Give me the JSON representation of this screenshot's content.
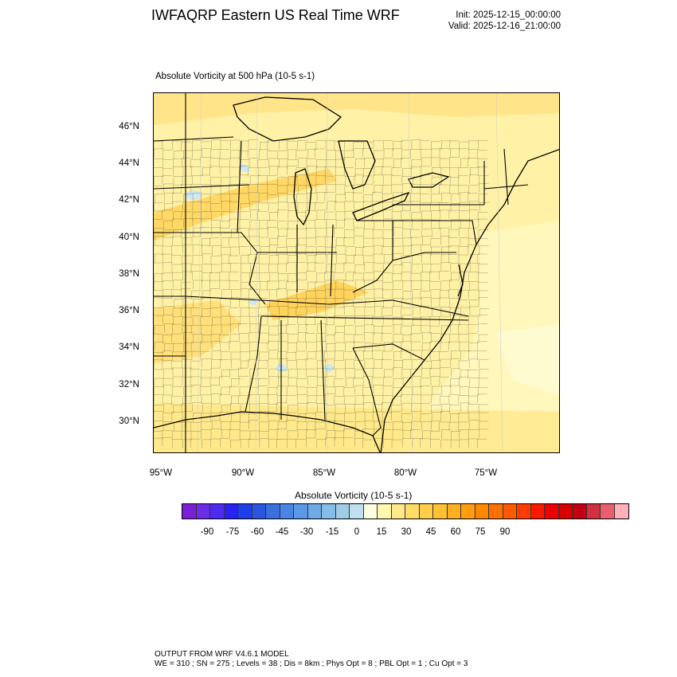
{
  "header": {
    "title": "IWFAQRP Eastern US Real Time WRF",
    "init": "Init: 2025-12-15_00:00:00",
    "valid": "Valid: 2025-12-16_21:00:00"
  },
  "field": {
    "title": "Absolute Vorticity at 500 hPa   (10-5 s-1)"
  },
  "map": {
    "lat_labels": [
      "46°N",
      "44°N",
      "42°N",
      "40°N",
      "38°N",
      "36°N",
      "34°N",
      "32°N",
      "30°N"
    ],
    "lon_labels": [
      "95°W",
      "90°W",
      "85°W",
      "80°W",
      "75°W"
    ],
    "colors": {
      "land_base": "#fff2a6",
      "ocean_base": "#fff6b8",
      "light_yellow": "#fff9c4",
      "yellow": "#ffe27a",
      "orange": "#ffd35c",
      "light_blue": "#cfe8f2",
      "boundary": "#000000"
    }
  },
  "colorbar": {
    "title": "Absolute Vorticity  (10-5 s-1)",
    "labels": [
      "-90",
      "-75",
      "-60",
      "-45",
      "-30",
      "-15",
      "0",
      "15",
      "30",
      "45",
      "60",
      "75",
      "90"
    ],
    "colors": [
      "#7a1fd6",
      "#6a2de8",
      "#4b2cf0",
      "#2a22f2",
      "#1e3fe8",
      "#2b55e0",
      "#3a6fe0",
      "#4a84e4",
      "#5b98e6",
      "#6eaae8",
      "#85bde8",
      "#9fcde8",
      "#bfe0ee",
      "#fffde0",
      "#fff6b0",
      "#ffe98a",
      "#ffdc66",
      "#ffcf4a",
      "#ffc133",
      "#ffb020",
      "#ff9c10",
      "#ff8800",
      "#ff7000",
      "#ff5a00",
      "#ff3c00",
      "#ff1800",
      "#ee0000",
      "#d80000",
      "#c40010",
      "#d03040",
      "#e86070",
      "#ffb0b8"
    ]
  },
  "footer": {
    "line1": "OUTPUT FROM WRF V4.6.1 MODEL",
    "line2": "WE = 310 ; SN = 275 ; Levels = 38 ; Dis = 8km ; Phys Opt = 8 ; PBL Opt = 1 ; Cu Opt = 3"
  }
}
